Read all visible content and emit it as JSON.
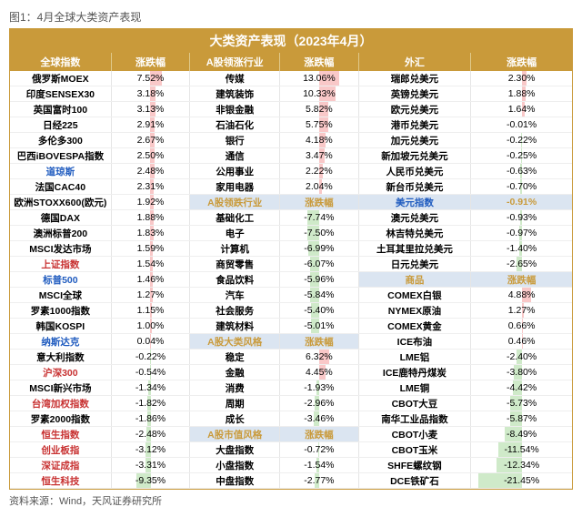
{
  "caption": "图1：4月全球大类资产表现",
  "title": "大类资产表现（2023年4月）",
  "source": "资料来源：Wind，天风证券研究所",
  "colors": {
    "headerBg": "#c99a3a",
    "headerFg": "#ffffff",
    "sectionBg": "#dbe5f1",
    "sectionFg": "#c99a3a",
    "posBar": "#f7b6b6",
    "negBar": "#bfe3b7",
    "highlightBlue": "#1f5bbf",
    "highlightRed": "#c83232"
  },
  "barScale": 25,
  "columns": [
    {
      "pair": 0,
      "labelHead": "全球指数",
      "valueHead": "涨跌幅"
    },
    {
      "pair": 1,
      "labelHead": "A股领涨行业",
      "valueHead": "涨跌幅"
    },
    {
      "pair": 2,
      "labelHead": "外汇",
      "valueHead": "涨跌幅"
    }
  ],
  "block1": {
    "label": "A股领跌行业",
    "value": "涨跌幅"
  },
  "block2": {
    "label": "A股大类风格",
    "value": "涨跌幅"
  },
  "block3": {
    "label": "A股市值风格",
    "value": "涨跌幅"
  },
  "block4": {
    "label": "美元指数",
    "value": -0.91
  },
  "block5": {
    "label": "商品",
    "value": "涨跌幅"
  },
  "pair0": [
    {
      "label": "俄罗斯MOEX",
      "value": 7.52
    },
    {
      "label": "印度SENSEX30",
      "value": 3.18
    },
    {
      "label": "英国富时100",
      "value": 3.13
    },
    {
      "label": "日经225",
      "value": 2.91
    },
    {
      "label": "多伦多300",
      "value": 2.67
    },
    {
      "label": "巴西iBOVESPA指数",
      "value": 2.5
    },
    {
      "label": "道琼斯",
      "value": 2.48,
      "color": "#1f5bbf"
    },
    {
      "label": "法国CAC40",
      "value": 2.31
    },
    {
      "label": "欧洲STOXX600(欧元)",
      "value": 1.92
    },
    {
      "label": "德国DAX",
      "value": 1.88
    },
    {
      "label": "澳洲标普200",
      "value": 1.83
    },
    {
      "label": "MSCI发达市场",
      "value": 1.59
    },
    {
      "label": "上证指数",
      "value": 1.54,
      "color": "#c83232"
    },
    {
      "label": "标普500",
      "value": 1.46,
      "color": "#1f5bbf"
    },
    {
      "label": "MSCI全球",
      "value": 1.27
    },
    {
      "label": "罗素1000指数",
      "value": 1.15
    },
    {
      "label": "韩国KOSPI",
      "value": 1.0
    },
    {
      "label": "纳斯达克",
      "value": 0.04,
      "color": "#1f5bbf"
    },
    {
      "label": "意大利指数",
      "value": -0.22
    },
    {
      "label": "沪深300",
      "value": -0.54,
      "color": "#c83232"
    },
    {
      "label": "MSCI新兴市场",
      "value": -1.34
    },
    {
      "label": "台湾加权指数",
      "value": -1.82,
      "color": "#c83232"
    },
    {
      "label": "罗素2000指数",
      "value": -1.86
    },
    {
      "label": "恒生指数",
      "value": -2.48,
      "color": "#c83232"
    },
    {
      "label": "创业板指",
      "value": -3.12,
      "color": "#c83232"
    },
    {
      "label": "深证成指",
      "value": -3.31,
      "color": "#c83232"
    },
    {
      "label": "恒生科技",
      "value": -9.35,
      "color": "#c83232"
    }
  ],
  "pair1a": [
    {
      "label": "传媒",
      "value": 13.06
    },
    {
      "label": "建筑装饰",
      "value": 10.33
    },
    {
      "label": "非银金融",
      "value": 5.82
    },
    {
      "label": "石油石化",
      "value": 5.75
    },
    {
      "label": "银行",
      "value": 4.18
    },
    {
      "label": "通信",
      "value": 3.47
    },
    {
      "label": "公用事业",
      "value": 2.22
    },
    {
      "label": "家用电器",
      "value": 2.04
    }
  ],
  "pair1b": [
    {
      "label": "基础化工",
      "value": -7.74
    },
    {
      "label": "电子",
      "value": -7.5
    },
    {
      "label": "计算机",
      "value": -6.99
    },
    {
      "label": "商贸零售",
      "value": -6.07
    },
    {
      "label": "食品饮料",
      "value": -5.96
    },
    {
      "label": "汽车",
      "value": -5.84
    },
    {
      "label": "社会服务",
      "value": -5.4
    },
    {
      "label": "建筑材料",
      "value": -5.01
    }
  ],
  "pair1c": [
    {
      "label": "稳定",
      "value": 6.32
    },
    {
      "label": "金融",
      "value": 4.45
    },
    {
      "label": "消费",
      "value": -1.93
    },
    {
      "label": "周期",
      "value": -2.96
    },
    {
      "label": "成长",
      "value": -3.46
    }
  ],
  "pair1d": [
    {
      "label": "大盘指数",
      "value": -0.72
    },
    {
      "label": "小盘指数",
      "value": -1.54
    },
    {
      "label": "中盘指数",
      "value": -2.77
    }
  ],
  "pair2a": [
    {
      "label": "瑞郎兑美元",
      "value": 2.3
    },
    {
      "label": "英镑兑美元",
      "value": 1.88
    },
    {
      "label": "欧元兑美元",
      "value": 1.64
    },
    {
      "label": "港币兑美元",
      "value": -0.01
    },
    {
      "label": "加元兑美元",
      "value": -0.22
    },
    {
      "label": "新加坡元兑美元",
      "value": -0.25
    },
    {
      "label": "人民币兑美元",
      "value": -0.63
    },
    {
      "label": "新台币兑美元",
      "value": -0.7
    }
  ],
  "pair2b": [
    {
      "label": "澳元兑美元",
      "value": -0.93
    },
    {
      "label": "林吉特兑美元",
      "value": -0.97
    },
    {
      "label": "土耳其里拉兑美元",
      "value": -1.4
    },
    {
      "label": "日元兑美元",
      "value": -2.65
    }
  ],
  "pair2c": [
    {
      "label": "COMEX白银",
      "value": 4.88
    },
    {
      "label": "NYMEX原油",
      "value": 1.27
    },
    {
      "label": "COMEX黄金",
      "value": 0.66
    },
    {
      "label": "ICE布油",
      "value": 0.46
    },
    {
      "label": "LME铝",
      "value": -2.4
    },
    {
      "label": "ICE鹿特丹煤炭",
      "value": -3.8
    },
    {
      "label": "LME铜",
      "value": -4.42
    },
    {
      "label": "CBOT大豆",
      "value": -5.73
    },
    {
      "label": "南华工业品指数",
      "value": -5.87
    },
    {
      "label": "CBOT小麦",
      "value": -8.49
    },
    {
      "label": "CBOT玉米",
      "value": -11.54
    },
    {
      "label": "SHFE螺纹钢",
      "value": -12.34
    },
    {
      "label": "DCE铁矿石",
      "value": -21.45
    }
  ]
}
